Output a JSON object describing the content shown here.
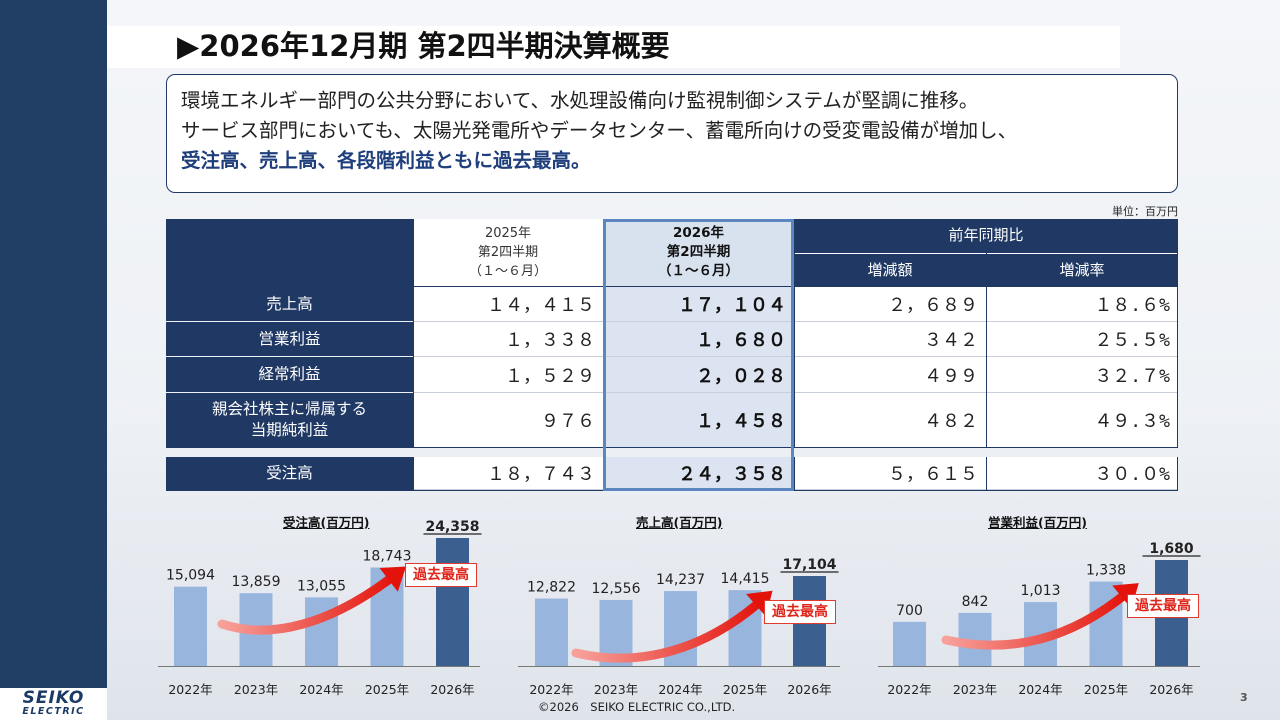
{
  "title": "▶2026年12月期 第2四半期決算概要",
  "summary": {
    "line1": "環境エネルギー部門の公共分野において、水処理設備向け監視制御システムが堅調に推移。",
    "line2": "サービス部門においても、太陽光発電所やデータセンター、蓄電所向けの受変電設備が増加し、",
    "line3": "受注高、売上高、各段階利益ともに過去最高。"
  },
  "unit": "単位：百万円",
  "table": {
    "header": {
      "prev": [
        "2025年",
        "第2四半期",
        "（１～６月）"
      ],
      "cur": [
        "2026年",
        "第2四半期",
        "（１～６月）"
      ],
      "yoy": "前年同期比",
      "diff": "増減額",
      "rate": "増減率"
    },
    "rows": [
      {
        "label": "売上高",
        "prev": "１４，４１５",
        "cur": "１７，１０４",
        "diff": "２，６８９",
        "rate": "１８.６%"
      },
      {
        "label": "営業利益",
        "prev": "１，３３８",
        "cur": "１，６８０",
        "diff": "３４２",
        "rate": "２５.５%"
      },
      {
        "label": "経常利益",
        "prev": "１，５２９",
        "cur": "２，０２８",
        "diff": "４９９",
        "rate": "３２.７%"
      },
      {
        "label": "親会社株主に帰属する\n当期純利益",
        "prev": "９７６",
        "cur": "１，４５８",
        "diff": "４８２",
        "rate": "４９.３%"
      }
    ],
    "orders": {
      "label": "受注高",
      "prev": "１８，７４３",
      "cur": "２４，３５８",
      "diff": "５，６１５",
      "rate": "３０.０%"
    }
  },
  "badge": "過去最高",
  "chart_data": [
    {
      "type": "bar",
      "title": "受注高(百万円)",
      "categories": [
        "2022年",
        "2023年",
        "2024年",
        "2025年",
        "2026年"
      ],
      "values": [
        15094,
        13859,
        13055,
        18743,
        24358
      ],
      "labels": [
        "15,094",
        "13,859",
        "13,055",
        "18,743",
        "24,358"
      ],
      "highlight_index": 4,
      "colors": {
        "normal": "#98b5de",
        "highlight": "#3b5f8f"
      }
    },
    {
      "type": "bar",
      "title": "売上高(百万円)",
      "categories": [
        "2022年",
        "2023年",
        "2024年",
        "2025年",
        "2026年"
      ],
      "values": [
        12822,
        12556,
        14237,
        14415,
        17104
      ],
      "labels": [
        "12,822",
        "12,556",
        "14,237",
        "14,415",
        "17,104"
      ],
      "highlight_index": 4,
      "colors": {
        "normal": "#98b5de",
        "highlight": "#3b5f8f"
      }
    },
    {
      "type": "bar",
      "title": "営業利益(百万円)",
      "categories": [
        "2022年",
        "2023年",
        "2024年",
        "2025年",
        "2026年"
      ],
      "values": [
        700,
        842,
        1013,
        1338,
        1680
      ],
      "labels": [
        "700",
        "842",
        "1,013",
        "1,338",
        "1,680"
      ],
      "highlight_index": 4,
      "colors": {
        "normal": "#98b5de",
        "highlight": "#3b5f8f"
      }
    }
  ],
  "footer": "©2026　SEIKO ELECTRIC CO.,LTD.",
  "page_number": "3",
  "logo": {
    "line1": "SEIKO",
    "line2": "ELECTRIC"
  }
}
